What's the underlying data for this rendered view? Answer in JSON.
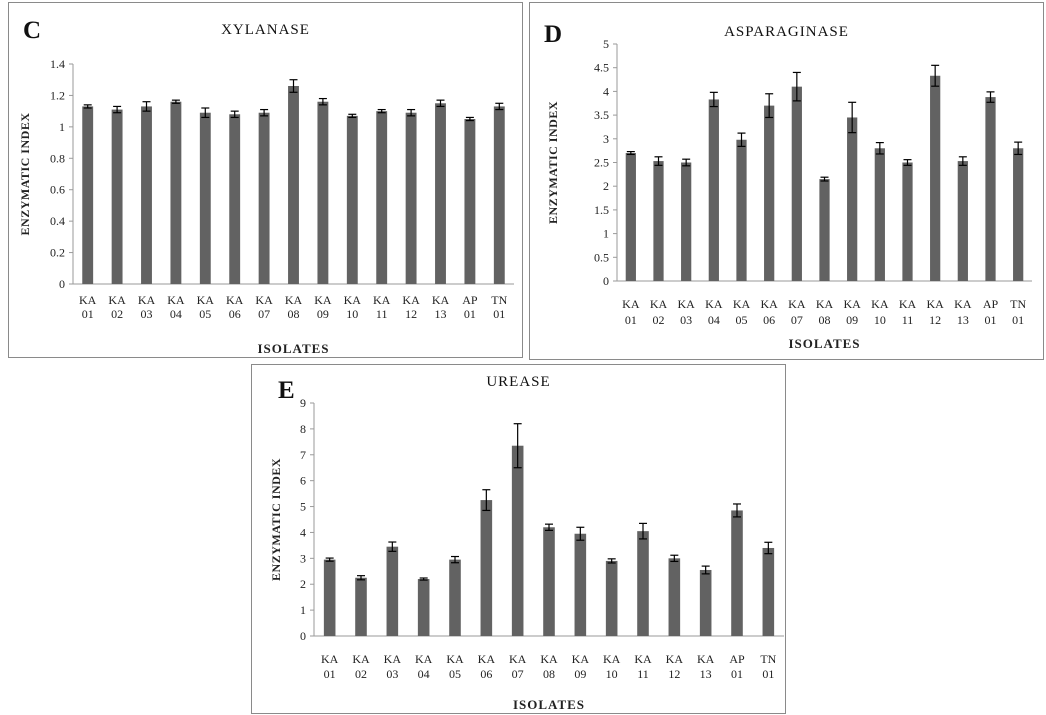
{
  "chart_data": [
    {
      "id": "c",
      "type": "bar",
      "panel_letter": "C",
      "title": "XYLANASE",
      "xlabel": "ISOLATES",
      "ylabel": "ENZYMATIC INDEX",
      "ylim": [
        0,
        1.4
      ],
      "yticks": [
        "0",
        "0.2",
        "0.4",
        "0.6",
        "0.8",
        "1",
        "1.2",
        "1.4"
      ],
      "categories": [
        [
          "KA",
          "01"
        ],
        [
          "KA",
          "02"
        ],
        [
          "KA",
          "03"
        ],
        [
          "KA",
          "04"
        ],
        [
          "KA",
          "05"
        ],
        [
          "KA",
          "06"
        ],
        [
          "KA",
          "07"
        ],
        [
          "KA",
          "08"
        ],
        [
          "KA",
          "09"
        ],
        [
          "KA",
          "10"
        ],
        [
          "KA",
          "11"
        ],
        [
          "KA",
          "12"
        ],
        [
          "KA",
          "13"
        ],
        [
          "AP",
          "01"
        ],
        [
          "TN",
          "01"
        ]
      ],
      "values": [
        1.13,
        1.11,
        1.13,
        1.16,
        1.09,
        1.08,
        1.09,
        1.26,
        1.16,
        1.07,
        1.1,
        1.09,
        1.15,
        1.05,
        1.13
      ],
      "errors": [
        0.01,
        0.02,
        0.03,
        0.01,
        0.03,
        0.02,
        0.02,
        0.04,
        0.02,
        0.01,
        0.01,
        0.02,
        0.02,
        0.01,
        0.02
      ],
      "grid": false,
      "bar_color": "#626262"
    },
    {
      "id": "d",
      "type": "bar",
      "panel_letter": "D",
      "title": "ASPARAGINASE",
      "xlabel": "ISOLATES",
      "ylabel": "ENZYMATIC INDEX",
      "ylim": [
        0,
        5
      ],
      "yticks": [
        "0",
        "0.5",
        "1",
        "1.5",
        "2",
        "2.5",
        "3",
        "3.5",
        "4",
        "4.5",
        "5"
      ],
      "categories": [
        [
          "KA",
          "01"
        ],
        [
          "KA",
          "02"
        ],
        [
          "KA",
          "03"
        ],
        [
          "KA",
          "04"
        ],
        [
          "KA",
          "05"
        ],
        [
          "KA",
          "06"
        ],
        [
          "KA",
          "07"
        ],
        [
          "KA",
          "08"
        ],
        [
          "KA",
          "09"
        ],
        [
          "KA",
          "10"
        ],
        [
          "KA",
          "11"
        ],
        [
          "KA",
          "12"
        ],
        [
          "KA",
          "13"
        ],
        [
          "AP",
          "01"
        ],
        [
          "TN",
          "01"
        ]
      ],
      "values": [
        2.7,
        2.53,
        2.5,
        3.83,
        2.98,
        3.7,
        4.1,
        2.15,
        3.45,
        2.8,
        2.5,
        4.33,
        2.53,
        3.88,
        2.8
      ],
      "errors": [
        0.03,
        0.09,
        0.07,
        0.15,
        0.14,
        0.25,
        0.3,
        0.04,
        0.32,
        0.12,
        0.06,
        0.22,
        0.09,
        0.11,
        0.13
      ],
      "grid": false,
      "bar_color": "#626262"
    },
    {
      "id": "e",
      "type": "bar",
      "panel_letter": "E",
      "title": "UREASE",
      "xlabel": "ISOLATES",
      "ylabel": "ENZYMATIC INDEX",
      "ylim": [
        0,
        9
      ],
      "yticks": [
        "0",
        "1",
        "2",
        "3",
        "4",
        "5",
        "6",
        "7",
        "8",
        "9"
      ],
      "categories": [
        [
          "KA",
          "01"
        ],
        [
          "KA",
          "02"
        ],
        [
          "KA",
          "03"
        ],
        [
          "KA",
          "04"
        ],
        [
          "KA",
          "05"
        ],
        [
          "KA",
          "06"
        ],
        [
          "KA",
          "07"
        ],
        [
          "KA",
          "08"
        ],
        [
          "KA",
          "09"
        ],
        [
          "KA",
          "10"
        ],
        [
          "KA",
          "11"
        ],
        [
          "KA",
          "12"
        ],
        [
          "KA",
          "13"
        ],
        [
          "AP",
          "01"
        ],
        [
          "TN",
          "01"
        ]
      ],
      "values": [
        2.95,
        2.25,
        3.45,
        2.2,
        2.95,
        5.25,
        7.35,
        4.2,
        3.95,
        2.9,
        4.05,
        3.0,
        2.55,
        4.85,
        3.4
      ],
      "errors": [
        0.06,
        0.08,
        0.18,
        0.04,
        0.12,
        0.4,
        0.85,
        0.12,
        0.25,
        0.08,
        0.3,
        0.12,
        0.15,
        0.25,
        0.22
      ],
      "grid": false,
      "bar_color": "#626262"
    }
  ]
}
